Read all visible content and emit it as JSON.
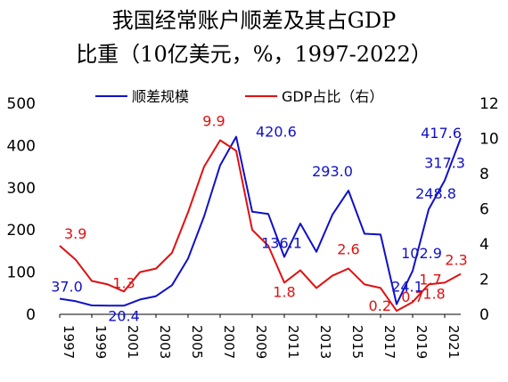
{
  "chart_data": {
    "type": "line",
    "title_line1": "我国经常账户顺差及其占GDP",
    "title_line2": "比重（10亿美元，%，1997-2022）",
    "x": [
      1997,
      1998,
      1999,
      2000,
      2001,
      2002,
      2003,
      2004,
      2005,
      2006,
      2007,
      2008,
      2009,
      2010,
      2011,
      2012,
      2013,
      2014,
      2015,
      2016,
      2017,
      2018,
      2019,
      2020,
      2021,
      2022
    ],
    "x_tick_labels": [
      "1997",
      "1999",
      "2001",
      "2003",
      "2005",
      "2007",
      "2009",
      "2011",
      "2013",
      "2015",
      "2017",
      "2019",
      "2021"
    ],
    "y_left": {
      "lim": [
        0,
        500
      ],
      "ticks": [
        "0",
        "100",
        "200",
        "300",
        "400",
        "500"
      ]
    },
    "y_right": {
      "lim": [
        0,
        12
      ],
      "ticks": [
        "0",
        "2",
        "4",
        "6",
        "8",
        "10",
        "12"
      ]
    },
    "legend_position": "top",
    "series": [
      {
        "name": "顺差规模",
        "axis": "left",
        "color": "#1010c8",
        "values": [
          37.0,
          31,
          21,
          20.5,
          20.4,
          35,
          43,
          69,
          132,
          232,
          353,
          420.6,
          243,
          238,
          136.1,
          215,
          148,
          236,
          293.0,
          191,
          189,
          24.1,
          102.9,
          248.8,
          317.3,
          417.6
        ],
        "labels": [
          {
            "i": 0,
            "text": "37.0"
          },
          {
            "i": 4,
            "text": "20.4"
          },
          {
            "i": 11,
            "text": "420.6"
          },
          {
            "i": 14,
            "text": "136.1"
          },
          {
            "i": 18,
            "text": "293.0"
          },
          {
            "i": 21,
            "text": "24.1"
          },
          {
            "i": 22,
            "text": "102.9"
          },
          {
            "i": 23,
            "text": "248.8"
          },
          {
            "i": 24,
            "text": "317.3"
          },
          {
            "i": 25,
            "text": "417.6"
          }
        ]
      },
      {
        "name": "GDP占比（右）",
        "axis": "right",
        "color": "#e01010",
        "values": [
          3.9,
          3.1,
          1.9,
          1.7,
          1.3,
          2.4,
          2.6,
          3.5,
          5.8,
          8.4,
          9.9,
          9.3,
          4.8,
          3.9,
          1.8,
          2.5,
          1.5,
          2.2,
          2.6,
          1.7,
          1.5,
          0.2,
          0.7,
          1.7,
          1.8,
          2.3
        ],
        "labels": [
          {
            "i": 0,
            "text": "3.9"
          },
          {
            "i": 4,
            "text": "1.3"
          },
          {
            "i": 10,
            "text": "9.9"
          },
          {
            "i": 14,
            "text": "1.8"
          },
          {
            "i": 18,
            "text": "2.6"
          },
          {
            "i": 21,
            "text": "0.2"
          },
          {
            "i": 22,
            "text": "0.7"
          },
          {
            "i": 23,
            "text": "1.7"
          },
          {
            "i": 24,
            "text": "1.8"
          },
          {
            "i": 25,
            "text": "2.3"
          }
        ]
      }
    ]
  }
}
